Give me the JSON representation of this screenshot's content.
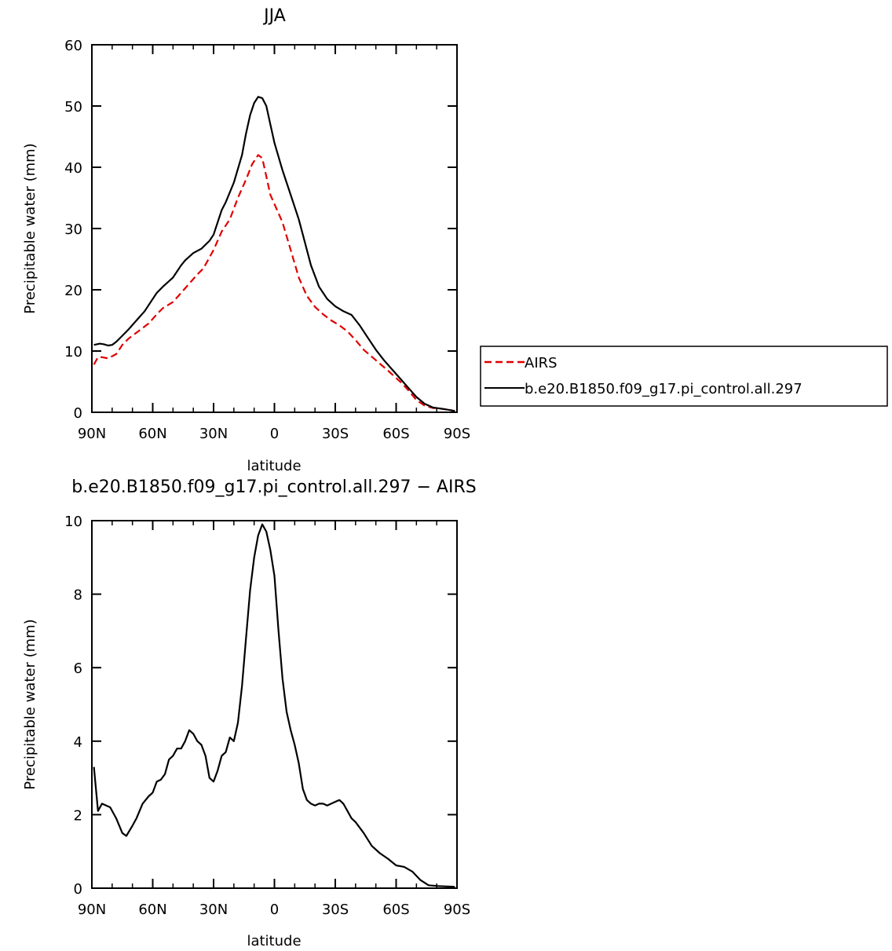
{
  "chart_data": [
    {
      "type": "line",
      "title": "JJA",
      "xlabel": "latitude",
      "ylabel": "Precipitable water (mm)",
      "xlim": [
        90,
        -90
      ],
      "ylim": [
        0,
        60
      ],
      "xticks": [
        90,
        60,
        30,
        0,
        -30,
        -60,
        -90
      ],
      "xtick_labels": [
        "90N",
        "60N",
        "30N",
        "0",
        "30S",
        "60S",
        "90S"
      ],
      "yticks": [
        0,
        10,
        20,
        30,
        40,
        50,
        60
      ],
      "ytick_labels": [
        "0",
        "10",
        "20",
        "30",
        "40",
        "50",
        "60"
      ],
      "legend_position": "right",
      "series": [
        {
          "name": "AIRS",
          "color": "#e00000",
          "dash": "dashed",
          "x": [
            89,
            87,
            85,
            82,
            78,
            75,
            72,
            68,
            62,
            58,
            55,
            50,
            46,
            42,
            38,
            35,
            30,
            26,
            22,
            18,
            14,
            11,
            8,
            6,
            4,
            2,
            0,
            -4,
            -8,
            -12,
            -16,
            -20,
            -24,
            -28,
            -32,
            -36,
            -40,
            -44,
            -50,
            -56,
            -62,
            -66,
            -70,
            -74,
            -78,
            -82,
            -86,
            -89
          ],
          "values": [
            7.8,
            9.0,
            9.0,
            8.8,
            9.5,
            11.0,
            12.0,
            13.0,
            14.5,
            16.0,
            17.0,
            18.0,
            19.5,
            21.0,
            22.5,
            23.5,
            26.5,
            29.5,
            31.5,
            35.0,
            38.0,
            40.5,
            42.0,
            41.5,
            38.5,
            35.5,
            34.0,
            31.0,
            26.5,
            22.0,
            19.0,
            17.2,
            16.0,
            15.0,
            14.2,
            13.2,
            11.8,
            10.2,
            8.5,
            6.8,
            5.0,
            3.6,
            2.0,
            1.1,
            0.7,
            0.6,
            0.4,
            0.2
          ]
        },
        {
          "name": "b.e20.B1850.f09_g17.pi_control.all.297",
          "color": "#000000",
          "dash": "solid",
          "x": [
            89,
            86,
            84,
            82,
            80,
            78,
            75,
            72,
            68,
            64,
            60,
            58,
            55,
            50,
            46,
            44,
            40,
            36,
            32,
            30,
            26,
            24,
            20,
            16,
            14,
            12,
            10,
            8,
            6,
            4,
            2,
            0,
            -4,
            -8,
            -12,
            -14,
            -18,
            -22,
            -26,
            -30,
            -34,
            -38,
            -42,
            -46,
            -50,
            -54,
            -58,
            -62,
            -66,
            -70,
            -74,
            -78,
            -82,
            -86,
            -89
          ],
          "values": [
            11.0,
            11.2,
            11.1,
            10.9,
            11.0,
            11.5,
            12.5,
            13.5,
            15.0,
            16.5,
            18.5,
            19.5,
            20.5,
            22.0,
            24.0,
            24.8,
            26.0,
            26.7,
            28.0,
            29.0,
            33.0,
            34.3,
            37.5,
            42.0,
            45.5,
            48.5,
            50.5,
            51.5,
            51.3,
            50.0,
            47.0,
            44.0,
            39.5,
            35.5,
            31.5,
            29.0,
            24.0,
            20.5,
            18.5,
            17.3,
            16.5,
            15.9,
            14.2,
            12.2,
            10.2,
            8.5,
            7.0,
            5.5,
            4.0,
            2.5,
            1.4,
            0.8,
            0.6,
            0.4,
            0.2
          ]
        }
      ]
    },
    {
      "type": "line",
      "title": "b.e20.B1850.f09_g17.pi_control.all.297 − AIRS",
      "xlabel": "latitude",
      "ylabel": "Precipitable water (mm)",
      "xlim": [
        90,
        -90
      ],
      "ylim": [
        0,
        10
      ],
      "xticks": [
        90,
        60,
        30,
        0,
        -30,
        -60,
        -90
      ],
      "xtick_labels": [
        "90N",
        "60N",
        "30N",
        "0",
        "30S",
        "60S",
        "90S"
      ],
      "yticks": [
        0,
        2,
        4,
        6,
        8,
        10
      ],
      "ytick_labels": [
        "0",
        "2",
        "4",
        "6",
        "8",
        "10"
      ],
      "series": [
        {
          "color": "#000000",
          "dash": "solid",
          "x": [
            89,
            87,
            85,
            81,
            78,
            75,
            73,
            70,
            68,
            65,
            62,
            60,
            58,
            56,
            54,
            52,
            50,
            48,
            46,
            44,
            42,
            40,
            38,
            36,
            34,
            32,
            30,
            28,
            26,
            24,
            22,
            20,
            18,
            16,
            14,
            12,
            10,
            8,
            6,
            4,
            2,
            0,
            -2,
            -4,
            -6,
            -8,
            -10,
            -12,
            -14,
            -16,
            -18,
            -20,
            -22,
            -24,
            -26,
            -28,
            -30,
            -32,
            -34,
            -36,
            -38,
            -40,
            -44,
            -48,
            -52,
            -56,
            -60,
            -64,
            -68,
            -72,
            -76,
            -80,
            -84,
            -88,
            -89
          ],
          "values": [
            3.3,
            2.1,
            2.3,
            2.2,
            1.9,
            1.5,
            1.42,
            1.7,
            1.9,
            2.3,
            2.5,
            2.6,
            2.9,
            2.95,
            3.1,
            3.5,
            3.6,
            3.8,
            3.8,
            4.0,
            4.3,
            4.2,
            4.0,
            3.9,
            3.6,
            3.0,
            2.9,
            3.2,
            3.6,
            3.7,
            4.1,
            4.0,
            4.5,
            5.5,
            6.8,
            8.1,
            9.0,
            9.6,
            9.9,
            9.7,
            9.2,
            8.5,
            7.0,
            5.7,
            4.8,
            4.3,
            3.9,
            3.4,
            2.7,
            2.4,
            2.3,
            2.25,
            2.3,
            2.3,
            2.25,
            2.3,
            2.35,
            2.4,
            2.3,
            2.1,
            1.9,
            1.8,
            1.5,
            1.15,
            0.95,
            0.8,
            0.62,
            0.58,
            0.45,
            0.22,
            0.08,
            0.06,
            0.05,
            0.04,
            0.03
          ]
        }
      ]
    }
  ]
}
